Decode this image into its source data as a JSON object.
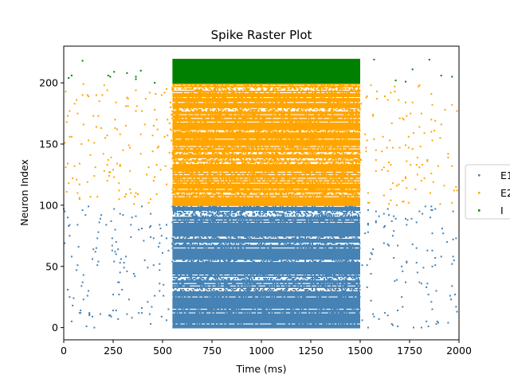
{
  "chart_data": {
    "type": "scatter",
    "title": "Spike Raster Plot",
    "xlabel": "Time (ms)",
    "ylabel": "Neuron Index",
    "xlim": [
      0,
      2000
    ],
    "ylim": [
      -10,
      230
    ],
    "xticks": [
      0,
      250,
      500,
      750,
      1000,
      1250,
      1500,
      1750,
      2000
    ],
    "yticks": [
      0,
      50,
      100,
      150,
      200
    ],
    "grid": false,
    "legend_position": "right",
    "stimulus_window_ms": [
      550,
      1500
    ],
    "series": [
      {
        "name": "E1",
        "color": "#4682b4",
        "neuron_range": [
          0,
          99
        ]
      },
      {
        "name": "E2",
        "color": "#ffa500",
        "neuron_range": [
          100,
          199
        ]
      },
      {
        "name": "I",
        "color": "#008000",
        "neuron_range": [
          200,
          219
        ]
      }
    ]
  }
}
